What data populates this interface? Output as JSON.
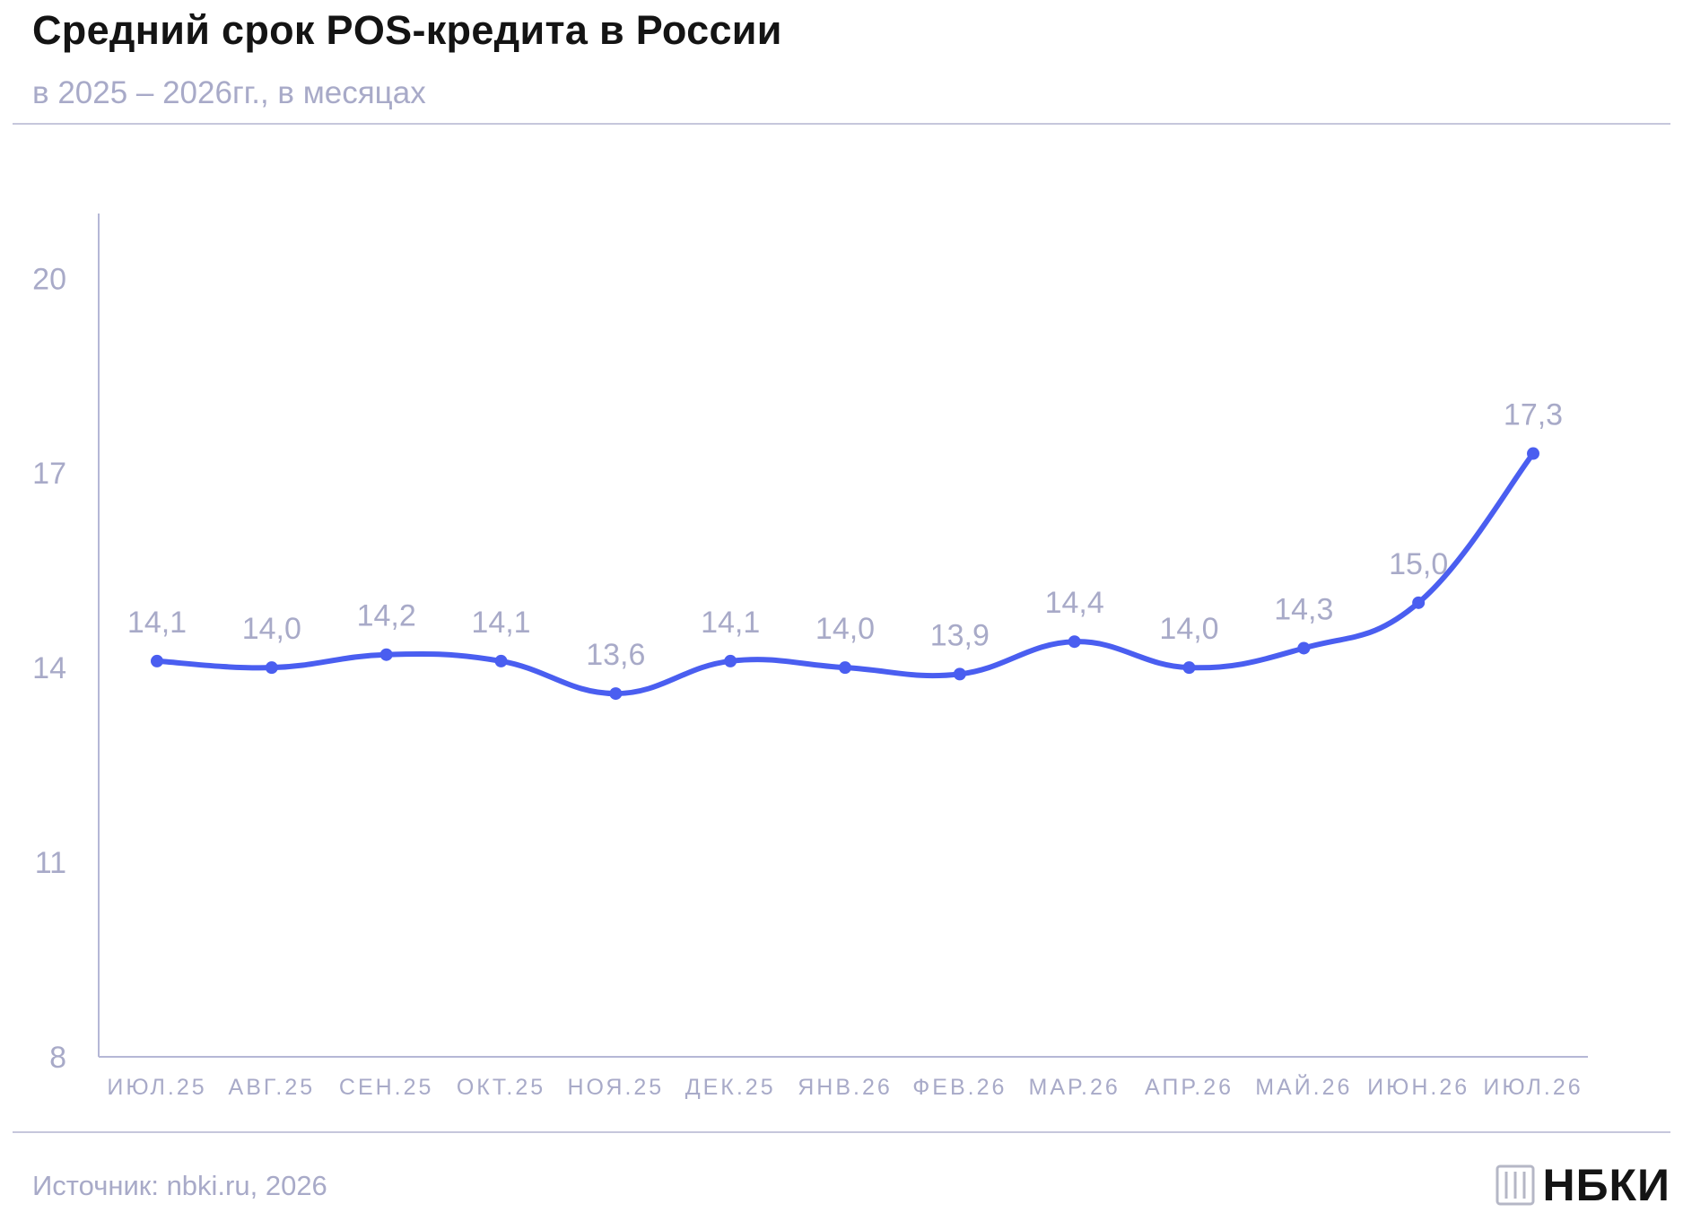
{
  "header": {
    "title": "Средний срок POS-кредита в России",
    "subtitle": "в 2025 – 2026гг., в месяцах"
  },
  "footer": {
    "source": "Источник: nbki.ru, 2026",
    "logo_text": "НБКИ"
  },
  "colors": {
    "line": "#4a5ef0",
    "axis": "#b5b7d6",
    "muted_text": "#a8aac8",
    "title": "#141414"
  },
  "chart_data": {
    "type": "line",
    "title": "Средний срок POS-кредита в России",
    "subtitle": "в 2025 – 2026гг., в месяцах",
    "xlabel": "",
    "ylabel": "",
    "categories": [
      "ИЮЛ.25",
      "АВГ.25",
      "СЕН.25",
      "ОКТ.25",
      "НОЯ.25",
      "ДЕК.25",
      "ЯНВ.26",
      "ФЕВ.26",
      "МАР.26",
      "АПР.26",
      "МАЙ.26",
      "ИЮН.26",
      "ИЮЛ.26"
    ],
    "series": [
      {
        "values": [
          14.1,
          14.0,
          14.2,
          14.1,
          13.6,
          14.1,
          14.0,
          13.9,
          14.4,
          14.0,
          14.3,
          15.0,
          17.3
        ],
        "labels": [
          "14,1",
          "14,0",
          "14,2",
          "14,1",
          "13,6",
          "14,1",
          "14,0",
          "13,9",
          "14,4",
          "14,0",
          "14,3",
          "15,0",
          "17,3"
        ]
      }
    ],
    "yticks": [
      8,
      11,
      14,
      17,
      20
    ],
    "ylim": [
      8,
      21
    ],
    "grid": false,
    "legend": "none"
  }
}
